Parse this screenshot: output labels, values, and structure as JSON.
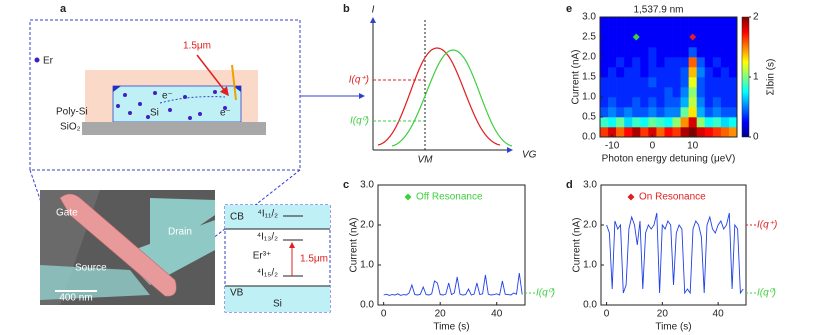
{
  "panel_labels": [
    "a",
    "b",
    "c",
    "d",
    "e"
  ],
  "schematic": {
    "dopant": "Er",
    "wavelength": "1.5μm",
    "electron_1": "e⁻",
    "electron_2": "e⁻",
    "gate": "Poly-Si",
    "channel": "Si",
    "substrate": "SiO₂"
  },
  "sem": {
    "gate": "Gate",
    "drain": "Drain",
    "source": "Source",
    "scale_bar": "400 nm"
  },
  "energy_diagram": {
    "cb": "CB",
    "level_1": "⁴I₁₁/₂",
    "level_2": "⁴I₁₃/₂",
    "ion": "Er³⁺",
    "level_3": "⁴I₁₅/₂",
    "transition": "1.5μm",
    "vb": "VB",
    "host": "Si"
  },
  "panel_b": {
    "y_label": "I",
    "x_label": "VG",
    "v_mark": "VM",
    "upper_level": "I(q⁺)",
    "lower_level": "I(q⁰)"
  },
  "chart_data": [
    {
      "type": "line",
      "annotation": {
        "label": "Off Resonance",
        "marker_color": "#3ecf3e"
      },
      "x": [
        0,
        1,
        2,
        3,
        4,
        5,
        6,
        7,
        8,
        9,
        10,
        11,
        12,
        13,
        14,
        15,
        16,
        17,
        18,
        19,
        20,
        21,
        22,
        23,
        24,
        25,
        26,
        27,
        28,
        29,
        30,
        31,
        32,
        33,
        34,
        35,
        36,
        37,
        38,
        39,
        40,
        41,
        42,
        43,
        44,
        45,
        46,
        47,
        48,
        49
      ],
      "series": [
        {
          "color": "#2040e8",
          "values": [
            0.25,
            0.27,
            0.24,
            0.26,
            0.25,
            0.28,
            0.24,
            0.26,
            0.25,
            0.3,
            0.5,
            0.26,
            0.25,
            0.27,
            0.45,
            0.26,
            0.25,
            0.28,
            0.6,
            0.55,
            0.26,
            0.25,
            0.27,
            0.55,
            0.26,
            0.3,
            0.7,
            0.27,
            0.25,
            0.26,
            0.4,
            0.25,
            0.27,
            0.55,
            0.26,
            0.28,
            0.75,
            0.27,
            0.25,
            0.26,
            0.28,
            0.25,
            0.6,
            0.27,
            0.26,
            0.25,
            0.3,
            0.27,
            0.8,
            0.26
          ]
        }
      ],
      "levels": [
        {
          "label": "I(q⁰)",
          "value": 0.3,
          "color": "#3ecf3e"
        }
      ],
      "xlabel": "Time (s)",
      "ylabel": "Current (nA)",
      "xlim": [
        -2,
        50
      ],
      "xticks": [
        0,
        20,
        40
      ],
      "ylim": [
        0,
        3
      ],
      "yticks": [
        {
          "value": 0,
          "label": "0.0"
        },
        {
          "value": 1,
          "label": "1.0"
        },
        {
          "value": 2,
          "label": "2.0"
        },
        {
          "value": 3,
          "label": "3.0"
        }
      ]
    },
    {
      "type": "line",
      "annotation": {
        "label": "On Resonance",
        "marker_color": "#e02020"
      },
      "x": [
        0,
        1,
        2,
        3,
        4,
        5,
        6,
        7,
        8,
        9,
        10,
        11,
        12,
        13,
        14,
        15,
        16,
        17,
        18,
        19,
        20,
        21,
        22,
        23,
        24,
        25,
        26,
        27,
        28,
        29,
        30,
        31,
        32,
        33,
        34,
        35,
        36,
        37,
        38,
        39,
        40,
        41,
        42,
        43,
        44,
        45,
        46,
        47,
        48,
        49
      ],
      "series": [
        {
          "color": "#2040e8",
          "values": [
            2.0,
            1.8,
            0.4,
            2.1,
            1.9,
            2.0,
            0.3,
            0.5,
            1.9,
            2.2,
            2.0,
            1.5,
            2.1,
            0.4,
            1.8,
            2.0,
            1.9,
            2.0,
            2.3,
            0.3,
            2.0,
            1.9,
            2.1,
            2.0,
            0.5,
            1.8,
            2.0,
            1.9,
            0.3,
            0.4,
            0.3,
            1.9,
            2.1,
            2.0,
            1.7,
            0.3,
            2.0,
            2.2,
            1.9,
            1.8,
            2.0,
            2.1,
            1.9,
            2.0,
            2.3,
            0.4,
            2.0,
            1.9,
            0.3,
            0.4
          ]
        }
      ],
      "levels": [
        {
          "label": "I(q⁺)",
          "value": 2.0,
          "color": "#e02020"
        },
        {
          "label": "I(q⁰)",
          "value": 0.3,
          "color": "#3ecf3e"
        }
      ],
      "xlabel": "Time (s)",
      "ylabel": "Current (nA)",
      "xlim": [
        -2,
        50
      ],
      "xticks": [
        0,
        20,
        40
      ],
      "ylim": [
        0,
        3
      ],
      "yticks": [
        {
          "value": 0,
          "label": "0.0"
        },
        {
          "value": 1,
          "label": "1.0"
        },
        {
          "value": 2,
          "label": "2.0"
        },
        {
          "value": 3,
          "label": "3.0"
        }
      ]
    },
    {
      "type": "heatmap",
      "title": "1,537.9 nm",
      "xlabel": "Photon energy detuning (μeV)",
      "ylabel": "Current (nA)",
      "clabel": "ΣIbin (s)",
      "xbins": [
        -13,
        -11,
        -9,
        -7,
        -5,
        -3,
        -1,
        1,
        3,
        5,
        7,
        9,
        11,
        13,
        15,
        17,
        19,
        21
      ],
      "ybins": [
        0,
        0.25,
        0.5,
        0.75,
        1,
        1.25,
        1.5,
        1.75,
        2,
        2.25,
        2.5,
        2.75,
        3
      ],
      "z": [
        [
          1.6,
          1.8,
          1.5,
          1.7,
          1.9,
          1.6,
          1.8,
          1.5,
          1.7,
          1.6,
          1.9,
          2.0,
          1.8,
          1.7,
          1.6,
          1.5,
          1.4
        ],
        [
          0.7,
          0.6,
          0.8,
          0.5,
          0.7,
          0.6,
          0.8,
          0.7,
          0.6,
          0.9,
          1.4,
          1.8,
          0.9,
          0.6,
          0.7,
          0.5,
          0.6
        ],
        [
          0.2,
          0.3,
          0.2,
          0.3,
          0.2,
          0.2,
          0.3,
          0.2,
          0.3,
          0.3,
          0.8,
          1.2,
          0.4,
          0.2,
          0.3,
          0.2,
          0.2
        ],
        [
          0.1,
          0.2,
          0.1,
          0.1,
          0.2,
          0.1,
          0.2,
          0.1,
          0.2,
          0.2,
          0.4,
          1.0,
          0.3,
          0.1,
          0.2,
          0.1,
          0.1
        ],
        [
          0.1,
          0.1,
          0.1,
          0.1,
          0.1,
          0.1,
          0.1,
          0.1,
          0.2,
          0.1,
          0.3,
          0.9,
          0.2,
          0.1,
          0.1,
          0.1,
          0.1
        ],
        [
          0.1,
          0.1,
          0.1,
          0.1,
          0.1,
          0.1,
          0.2,
          0.1,
          0.1,
          0.1,
          0.2,
          1.1,
          0.2,
          0.1,
          0.1,
          0.1,
          0.1
        ],
        [
          0,
          0.1,
          0,
          0.1,
          0.1,
          0,
          0.1,
          0.1,
          0.1,
          0.1,
          0.2,
          1.3,
          0.3,
          0.1,
          0,
          0.1,
          0
        ],
        [
          0,
          0,
          0.1,
          0,
          0.1,
          0,
          0.1,
          0,
          0.1,
          0.1,
          0.1,
          1.5,
          0.2,
          0,
          0.1,
          0,
          0
        ],
        [
          0,
          0,
          0,
          0,
          0,
          0,
          0.1,
          0,
          0,
          0,
          0,
          0.2,
          0,
          0,
          0,
          0,
          0
        ],
        [
          0,
          0,
          0,
          0,
          0,
          0,
          0,
          0,
          0,
          0,
          0,
          0,
          0,
          0,
          0,
          0,
          0
        ],
        [
          0,
          0,
          0,
          0,
          0,
          0,
          0,
          0,
          0,
          0,
          0,
          0,
          0,
          0,
          0,
          0,
          0
        ],
        [
          0,
          0,
          0,
          0,
          0,
          0,
          0,
          0,
          0,
          0,
          0,
          0,
          0,
          0,
          0,
          0,
          0
        ]
      ],
      "markers": [
        {
          "x": -4,
          "y": 2.5,
          "color": "#3ecf3e"
        },
        {
          "x": 10,
          "y": 2.5,
          "color": "#e02020"
        }
      ],
      "xlim": [
        -13,
        21
      ],
      "xticks": [
        -10,
        0,
        10
      ],
      "ylim": [
        0,
        3
      ],
      "yticks": [
        {
          "value": 0,
          "label": "0.0"
        },
        0.5,
        {
          "value": 1,
          "label": "1.0"
        },
        1.5,
        {
          "value": 2,
          "label": "2.0"
        },
        2.5,
        {
          "value": 3,
          "label": "3.0"
        }
      ],
      "clim": [
        0,
        2
      ],
      "cticks": [
        0,
        1,
        2
      ]
    }
  ]
}
